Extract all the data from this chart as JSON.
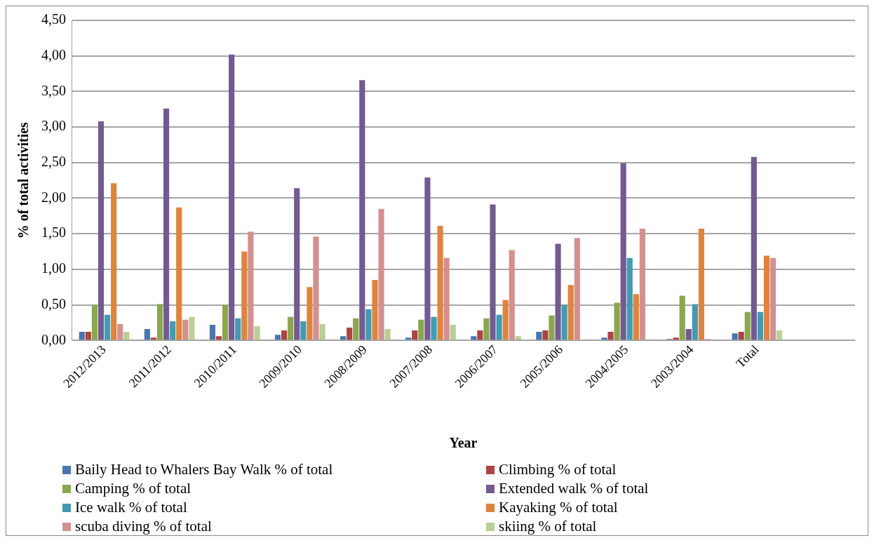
{
  "chart_data": {
    "type": "bar",
    "xlabel": "Year",
    "ylabel": "% of total activities",
    "categories": [
      "2012/2013",
      "2011/2012",
      "2010/2011",
      "2009/2010",
      "2008/2009",
      "2007/2008",
      "2006/2007",
      "2005/2006",
      "2004/2005",
      "2003/2004",
      "Total",
      null
    ],
    "series": [
      {
        "name": "Baily Head to Whalers Bay Walk % of total",
        "color": "#4a76ad",
        "values": [
          0.12,
          0.16,
          0.22,
          0.08,
          0.06,
          0.04,
          0.06,
          0.12,
          0.04,
          0.02,
          0.1,
          null
        ]
      },
      {
        "name": "Climbing % of total",
        "color": "#ad4441",
        "values": [
          0.12,
          0.04,
          0.06,
          0.14,
          0.18,
          0.14,
          0.14,
          0.14,
          0.12,
          0.04,
          0.12,
          null
        ]
      },
      {
        "name": "Camping % of total",
        "color": "#8ba64e",
        "values": [
          0.5,
          0.51,
          0.5,
          0.33,
          0.31,
          0.29,
          0.31,
          0.35,
          0.53,
          0.63,
          0.4,
          null
        ]
      },
      {
        "name": "Extended walk % of total",
        "color": "#735a91",
        "values": [
          3.08,
          3.26,
          4.02,
          2.14,
          3.66,
          2.29,
          1.91,
          1.36,
          2.49,
          0.16,
          2.58,
          null
        ]
      },
      {
        "name": "Ice walk % of total",
        "color": "#439ab3",
        "values": [
          0.36,
          0.27,
          0.31,
          0.27,
          0.44,
          0.33,
          0.36,
          0.5,
          1.16,
          0.51,
          0.4,
          null
        ]
      },
      {
        "name": "Kayaking % of total",
        "color": "#dd843e",
        "values": [
          2.21,
          1.87,
          1.25,
          0.75,
          0.85,
          1.61,
          0.57,
          0.78,
          0.65,
          1.57,
          1.19,
          null
        ]
      },
      {
        "name": "scuba diving % of total",
        "color": "#d39090",
        "values": [
          0.23,
          0.29,
          1.53,
          1.46,
          1.85,
          1.16,
          1.27,
          1.44,
          1.57,
          0.02,
          1.16,
          null
        ]
      },
      {
        "name": "skiing % of total",
        "color": "#b9cf95",
        "values": [
          0.12,
          0.33,
          0.2,
          0.23,
          0.16,
          0.22,
          0.06,
          0,
          0,
          0,
          0.14,
          null
        ]
      }
    ],
    "ylim": [
      0,
      4.5
    ],
    "yticks": [
      {
        "value": 0,
        "label": "0,00"
      },
      {
        "value": 0.5,
        "label": "0,50"
      },
      {
        "value": 1,
        "label": "1,00"
      },
      {
        "value": 1.5,
        "label": "1,50"
      },
      {
        "value": 2,
        "label": "2,00"
      },
      {
        "value": 2.5,
        "label": "2,50"
      },
      {
        "value": 3,
        "label": "3,00"
      },
      {
        "value": 3.5,
        "label": "3,50"
      },
      {
        "value": 4,
        "label": "4,00"
      },
      {
        "value": 4.5,
        "label": "4,50"
      }
    ],
    "grid": "y",
    "legend": "bottom"
  }
}
